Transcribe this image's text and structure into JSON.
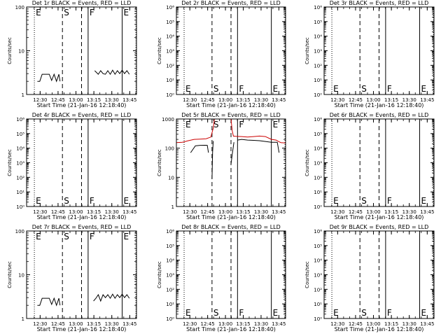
{
  "figure": {
    "start_time_label": "Start Time (21-Jan-16 12:18:40)",
    "ylabel": "Counts/sec",
    "x_tick_labels": [
      "12:30",
      "12:45",
      "13:00",
      "13:15",
      "13:30",
      "13:45"
    ],
    "line_markers": {
      "E": "E",
      "S": "S",
      "F": "F"
    }
  },
  "chart_data": [
    {
      "type": "line",
      "title": "Det 1r BLACK = Events, RED = LLD",
      "ylabel": "Counts/sec",
      "xlabel": "Start Time (21-Jan-16 12:18:40)",
      "xlim_min": [
        0,
        92
      ],
      "ylim": [
        1,
        100
      ],
      "ylog": true,
      "y_tick_labels": [
        "1",
        "10",
        "100"
      ],
      "y_ticks": [
        1,
        10,
        100
      ],
      "marker_label_pos": "top",
      "series": [
        {
          "color": "#000000",
          "segments": [
            {
              "x": [
                9,
                11,
                13,
                15,
                17,
                19,
                21,
                23,
                25,
                27,
                28
              ],
              "y": [
                2.0,
                2.0,
                2.9,
                2.9,
                2.9,
                2.9,
                2.1,
                2.9,
                2.0,
                2.9,
                2.0
              ]
            },
            {
              "x": [
                57,
                60,
                62,
                64,
                66,
                68,
                70,
                72,
                74,
                76,
                78,
                80,
                82,
                84,
                86
              ],
              "y": [
                3.5,
                2.9,
                3.5,
                3.0,
                2.9,
                3.5,
                2.9,
                3.6,
                2.9,
                3.5,
                3.0,
                3.6,
                3.0,
                3.5,
                2.9
              ]
            }
          ]
        }
      ]
    },
    {
      "type": "line",
      "title": "Det 2r BLACK = Events, RED = LLD",
      "ylabel": "Counts/sec",
      "xlabel": "Start Time (21-Jan-16 12:18:40)",
      "xlim_min": [
        0,
        92
      ],
      "ylim": [
        1,
        1000000
      ],
      "ylog": true,
      "y_tick_labels": [
        "10⁰",
        "10¹",
        "10²",
        "10³",
        "10⁴",
        "10⁵",
        "10⁶"
      ],
      "y_ticks": [
        1,
        10,
        100,
        1000,
        10000,
        100000,
        1000000
      ],
      "marker_label_pos": "bottom",
      "series": []
    },
    {
      "type": "line",
      "title": "Det 3r BLACK = Events, RED = LLD",
      "ylabel": "Counts/sec",
      "xlabel": "Start Time (21-Jan-16 12:18:40)",
      "xlim_min": [
        0,
        92
      ],
      "ylim": [
        1,
        1000000
      ],
      "ylog": true,
      "y_tick_labels": [
        "10⁰",
        "10¹",
        "10²",
        "10³",
        "10⁴",
        "10⁵",
        "10⁶"
      ],
      "y_ticks": [
        1,
        10,
        100,
        1000,
        10000,
        100000,
        1000000
      ],
      "marker_label_pos": "bottom",
      "series": []
    },
    {
      "type": "line",
      "title": "Det 4r BLACK = Events, RED = LLD",
      "ylabel": "Counts/sec",
      "xlabel": "Start Time (21-Jan-16 12:18:40)",
      "xlim_min": [
        0,
        92
      ],
      "ylim": [
        1,
        1000000
      ],
      "ylog": true,
      "y_tick_labels": [
        "10⁰",
        "10¹",
        "10²",
        "10³",
        "10⁴",
        "10⁵",
        "10⁶"
      ],
      "y_ticks": [
        1,
        10,
        100,
        1000,
        10000,
        100000,
        1000000
      ],
      "marker_label_pos": "bottom",
      "series": []
    },
    {
      "type": "line",
      "title": "Det 5r BLACK = Events, RED = LLD",
      "ylabel": "Counts/sec",
      "xlabel": "Start Time (21-Jan-16 12:18:40)",
      "xlim_min": [
        0,
        92
      ],
      "ylim": [
        1,
        1000
      ],
      "ylog": true,
      "y_tick_labels": [
        "1",
        "10",
        "100",
        "1000"
      ],
      "y_ticks": [
        1,
        10,
        100,
        1000
      ],
      "marker_label_pos": "top",
      "series": [
        {
          "name": "Events",
          "color": "#000000",
          "segments": [
            {
              "x": [
                12,
                16,
                20,
                24,
                26,
                27
              ],
              "y": [
                70,
                120,
                125,
                126,
                125,
                70
              ]
            },
            {
              "x": [
                30,
                30.5,
                31
              ],
              "y": [
                9,
                70,
                175
              ]
            },
            {
              "x": [
                46,
                47,
                48.5
              ],
              "y": [
                28,
                60,
                160
              ]
            },
            {
              "x": [
                51.5,
                55,
                60,
                65,
                70,
                75,
                80,
                85,
                86.5
              ],
              "y": [
                190,
                200,
                190,
                185,
                180,
                170,
                160,
                160,
                70
              ]
            }
          ]
        },
        {
          "name": "LLD",
          "color": "#cc0000",
          "segments": [
            {
              "x": [
                0,
                5,
                10,
                15,
                20,
                25,
                29,
                31,
                32
              ],
              "y": [
                155,
                160,
                180,
                200,
                205,
                210,
                240,
                480,
                1000
              ]
            },
            {
              "x": [
                46,
                47,
                48,
                50,
                55,
                60,
                65,
                70,
                75,
                80,
                84,
                86,
                88,
                92
              ],
              "y": [
                1000,
                400,
                260,
                255,
                250,
                240,
                250,
                260,
                250,
                200,
                190,
                170,
                155,
                150
              ]
            }
          ]
        }
      ]
    },
    {
      "type": "line",
      "title": "Det 6r BLACK = Events, RED = LLD",
      "ylabel": "Counts/sec",
      "xlabel": "Start Time (21-Jan-16 12:18:40)",
      "xlim_min": [
        0,
        92
      ],
      "ylim": [
        1,
        1000000
      ],
      "ylog": true,
      "y_tick_labels": [
        "10⁰",
        "10¹",
        "10²",
        "10³",
        "10⁴",
        "10⁵",
        "10⁶"
      ],
      "y_ticks": [
        1,
        10,
        100,
        1000,
        10000,
        100000,
        1000000
      ],
      "marker_label_pos": "bottom",
      "series": []
    },
    {
      "type": "line",
      "title": "Det 7r BLACK = Events, RED = LLD",
      "ylabel": "Counts/sec",
      "xlabel": "Start Time (21-Jan-16 12:18:40)",
      "xlim_min": [
        0,
        92
      ],
      "ylim": [
        1,
        100
      ],
      "ylog": true,
      "y_tick_labels": [
        "1",
        "10",
        "100"
      ],
      "y_ticks": [
        1,
        10,
        100
      ],
      "marker_label_pos": "top",
      "series": [
        {
          "color": "#000000",
          "segments": [
            {
              "x": [
                9,
                11,
                13,
                15,
                17,
                19,
                21,
                23,
                25,
                27,
                28
              ],
              "y": [
                2.0,
                2.0,
                2.9,
                2.9,
                2.9,
                2.9,
                2.1,
                2.9,
                2.0,
                2.9,
                2.0
              ]
            },
            {
              "x": [
                56,
                58,
                60,
                62,
                64,
                66,
                68,
                70,
                72,
                74,
                76,
                78,
                80,
                82,
                84,
                86
              ],
              "y": [
                2.5,
                2.9,
                3.5,
                2.5,
                3.5,
                3.0,
                3.5,
                2.9,
                3.6,
                2.9,
                3.5,
                3.0,
                3.6,
                3.0,
                3.5,
                2.9
              ]
            }
          ]
        }
      ]
    },
    {
      "type": "line",
      "title": "Det 8r BLACK = Events, RED = LLD",
      "ylabel": "Counts/sec",
      "xlabel": "Start Time (21-Jan-16 12:18:40)",
      "xlim_min": [
        0,
        92
      ],
      "ylim": [
        1,
        1000000
      ],
      "ylog": true,
      "y_tick_labels": [
        "10⁰",
        "10¹",
        "10²",
        "10³",
        "10⁴",
        "10⁵",
        "10⁶"
      ],
      "y_ticks": [
        1,
        10,
        100,
        1000,
        10000,
        100000,
        1000000
      ],
      "marker_label_pos": "bottom",
      "series": []
    },
    {
      "type": "line",
      "title": "Det 9r BLACK = Events, RED = LLD",
      "ylabel": "Counts/sec",
      "xlabel": "Start Time (21-Jan-16 12:18:40)",
      "xlim_min": [
        0,
        92
      ],
      "ylim": [
        1,
        1000000
      ],
      "ylog": true,
      "y_tick_labels": [
        "10⁰",
        "10¹",
        "10²",
        "10³",
        "10⁴",
        "10⁵",
        "10⁶"
      ],
      "y_ticks": [
        1,
        10,
        100,
        1000,
        10000,
        100000,
        1000000
      ],
      "marker_label_pos": "bottom",
      "series": []
    }
  ],
  "vertical_lines": {
    "dotted_min": [
      6.5,
      91.5
    ],
    "dashed_min": [
      30,
      46
    ],
    "solid_min": [
      51.5,
      80
    ],
    "labels": [
      "E",
      "S",
      "F",
      "E"
    ]
  }
}
